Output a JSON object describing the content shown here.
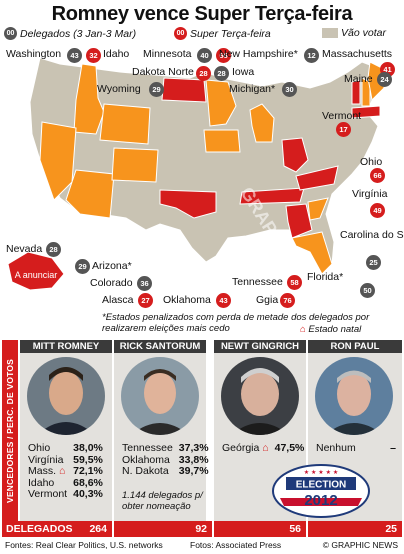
{
  "title": "Romney vence Super Terça-feira",
  "legend": {
    "delegates_code": "00",
    "delegates_label": "Delegados (3 Jan-3 Mar)",
    "super_code": "00",
    "super_label": "Super Terça-feira",
    "novote_label": "Vão votar"
  },
  "colors": {
    "romney": "#f7941d",
    "santorum": "#d51d1d",
    "no_vote": "#c9c3b3",
    "voted_grey": "#8a8577"
  },
  "states": [
    {
      "name": "Washington",
      "badge": "43",
      "type": "grey"
    },
    {
      "name": "Idaho",
      "badge": "32",
      "type": "red"
    },
    {
      "name": "Minnesota",
      "badge": "40",
      "type": "grey"
    },
    {
      "name": "Ohio",
      "badge": "66",
      "type": "red"
    },
    {
      "name": "New Hampshire*",
      "badge": "12",
      "type": "grey"
    },
    {
      "name": "Massachusetts",
      "badge": "41",
      "type": "red"
    },
    {
      "name": "Dakota Norte",
      "badge": "28",
      "type": "red"
    },
    {
      "name": "Iowa",
      "badge": "28",
      "type": "grey"
    },
    {
      "name": "Wyoming",
      "badge": "29",
      "type": "grey"
    },
    {
      "name": "Michigan*",
      "badge": "30",
      "type": "grey"
    },
    {
      "name": "Maine",
      "badge": "24",
      "type": "grey"
    },
    {
      "name": "Vermont",
      "badge": "17",
      "type": "red"
    },
    {
      "name": "Virgínia",
      "badge": "49",
      "type": "red"
    },
    {
      "name": "Nevada",
      "badge": "28",
      "type": "grey"
    },
    {
      "name": "Arizona*",
      "badge": "29",
      "type": "grey"
    },
    {
      "name": "Carolina do Sul*",
      "badge": "25",
      "type": "grey"
    },
    {
      "name": "Colorado",
      "badge": "36",
      "type": "grey"
    },
    {
      "name": "Tennessee",
      "badge": "58",
      "type": "red"
    },
    {
      "name": "Florida*",
      "badge": "50",
      "type": "grey"
    },
    {
      "name": "Alasca",
      "badge": "27",
      "type": "red"
    },
    {
      "name": "Oklahoma",
      "badge": "43",
      "type": "red"
    },
    {
      "name": "Ggia",
      "badge": "76",
      "type": "red"
    }
  ],
  "ad_label": "A anunciar",
  "note": "*Estados penalizados com perda de metade dos delegados por realizarem eleições mais cedo",
  "natal": "Estado natal",
  "side_label": "VENCEDORES / PERC. DE VOTOS",
  "candidates": [
    {
      "name": "MITT ROMNEY",
      "results": [
        [
          "Ohio",
          "38,0%"
        ],
        [
          "Virgínia",
          "59,5%"
        ],
        [
          "Mass.",
          "72,1%"
        ],
        [
          "Idaho",
          "68,6%"
        ],
        [
          "Vermont",
          "40,3%"
        ]
      ],
      "delegates": "264"
    },
    {
      "name": "RICK SANTORUM",
      "results": [
        [
          "Tennessee",
          "37,3%"
        ],
        [
          "Oklahoma",
          "33,8%"
        ],
        [
          "N. Dakota",
          "39,7%"
        ]
      ],
      "note": "1.144 delegados p/ obter nomeação",
      "delegates": "92"
    },
    {
      "name": "NEWT GINGRICH",
      "results": [
        [
          "Geórgia",
          "47,5%"
        ]
      ],
      "delegates": "56"
    },
    {
      "name": "RON PAUL",
      "results": [
        [
          "Nenhum",
          "–"
        ]
      ],
      "delegates": "25"
    }
  ],
  "delegates_label": "DELEGADOS",
  "badge_text": {
    "top": "ELECTION",
    "year": "2012"
  },
  "watermark": "GRAPHIC NEWS",
  "footer": {
    "left": "Fontes: Real Clear Politics, U.S. networks",
    "mid": "Fotos: Associated Press",
    "right": "© GRAPHIC NEWS"
  }
}
